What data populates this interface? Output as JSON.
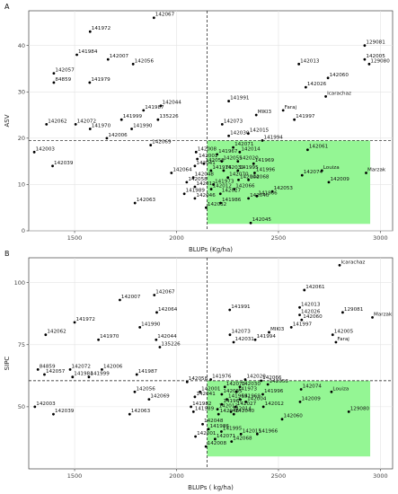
{
  "chart_data": [
    {
      "panel": "A",
      "type": "scatter",
      "xlabel": "BLUPs (Kg/ha)",
      "ylabel": "ASV",
      "xlim": [
        1275,
        3060
      ],
      "ylim": [
        0,
        47.5
      ],
      "xticks": [
        1500,
        2000,
        2500,
        3000
      ],
      "yticks": [
        0,
        10,
        20,
        30,
        40
      ],
      "vline": 2150,
      "hline": 19.5,
      "highlight": {
        "x": [
          2150,
          2950
        ],
        "y": [
          1.5,
          19.5
        ],
        "color": "#8ef58e"
      },
      "grid": true,
      "points": [
        {
          "x": 1889,
          "y": 46,
          "label": "142067"
        },
        {
          "x": 1576,
          "y": 43,
          "label": "141972"
        },
        {
          "x": 1511,
          "y": 38,
          "label": "141984"
        },
        {
          "x": 1664,
          "y": 37,
          "label": "142007"
        },
        {
          "x": 1787,
          "y": 36,
          "label": "142056"
        },
        {
          "x": 2923,
          "y": 40,
          "label": "129081"
        },
        {
          "x": 2923,
          "y": 37,
          "label": "142005"
        },
        {
          "x": 2600,
          "y": 36,
          "label": "142013"
        },
        {
          "x": 2945,
          "y": 36,
          "label": "129080"
        },
        {
          "x": 2743,
          "y": 33,
          "label": "142060"
        },
        {
          "x": 1398,
          "y": 34,
          "label": "142057"
        },
        {
          "x": 1398,
          "y": 32,
          "label": "84859"
        },
        {
          "x": 1574,
          "y": 32,
          "label": "141979"
        },
        {
          "x": 2634,
          "y": 31,
          "label": "142026"
        },
        {
          "x": 2732,
          "y": 29,
          "label": "Icarachaz"
        },
        {
          "x": 2256,
          "y": 28,
          "label": "141991"
        },
        {
          "x": 1923,
          "y": 27,
          "label": "142044"
        },
        {
          "x": 1838,
          "y": 26,
          "label": "141987"
        },
        {
          "x": 1730,
          "y": 24,
          "label": "141999"
        },
        {
          "x": 1909,
          "y": 24,
          "label": "135226"
        },
        {
          "x": 1362,
          "y": 23,
          "label": "142062"
        },
        {
          "x": 1505,
          "y": 23,
          "label": "142072"
        },
        {
          "x": 1576,
          "y": 22,
          "label": "141970"
        },
        {
          "x": 1780,
          "y": 22,
          "label": "141990"
        },
        {
          "x": 2578,
          "y": 24,
          "label": "141997"
        },
        {
          "x": 2391,
          "y": 25,
          "label": "MIKI3"
        },
        {
          "x": 2523,
          "y": 26,
          "label": "Faraj"
        },
        {
          "x": 2224,
          "y": 23,
          "label": "142073"
        },
        {
          "x": 2352,
          "y": 21,
          "label": "142015"
        },
        {
          "x": 2256,
          "y": 20.5,
          "label": "142030"
        },
        {
          "x": 1658,
          "y": 20,
          "label": "142006"
        },
        {
          "x": 1873,
          "y": 18.5,
          "label": "142069"
        },
        {
          "x": 2096,
          "y": 17,
          "label": "142008"
        },
        {
          "x": 2102,
          "y": 15.5,
          "label": "142001"
        },
        {
          "x": 2134,
          "y": 14.5,
          "label": "142058"
        },
        {
          "x": 2090,
          "y": 14,
          "label": "142041"
        },
        {
          "x": 1975,
          "y": 12.5,
          "label": "142064"
        },
        {
          "x": 2082,
          "y": 11.5,
          "label": "142048"
        },
        {
          "x": 1302,
          "y": 17,
          "label": "142003"
        },
        {
          "x": 1392,
          "y": 14,
          "label": "142039"
        },
        {
          "x": 2169,
          "y": 13,
          "label": "141976"
        },
        {
          "x": 2050,
          "y": 10.5,
          "label": "142058"
        },
        {
          "x": 2090,
          "y": 9.5,
          "label": "142012"
        },
        {
          "x": 2038,
          "y": 8,
          "label": "141989"
        },
        {
          "x": 2090,
          "y": 7,
          "label": "142046"
        },
        {
          "x": 1796,
          "y": 6,
          "label": "142063"
        },
        {
          "x": 2145,
          "y": 5,
          "label": "142032"
        },
        {
          "x": 2364,
          "y": 1.7,
          "label": "142045"
        },
        {
          "x": 2199,
          "y": 16.5,
          "label": "141967"
        },
        {
          "x": 2278,
          "y": 18,
          "label": "142071"
        },
        {
          "x": 2310,
          "y": 17,
          "label": "142014"
        },
        {
          "x": 2421,
          "y": 19.5,
          "label": "141994"
        },
        {
          "x": 2643,
          "y": 17.5,
          "label": "142061"
        },
        {
          "x": 2222,
          "y": 15,
          "label": "142055"
        },
        {
          "x": 2301,
          "y": 15,
          "label": "142020"
        },
        {
          "x": 2378,
          "y": 14.5,
          "label": "141969"
        },
        {
          "x": 2231,
          "y": 13,
          "label": "142031"
        },
        {
          "x": 2301,
          "y": 13,
          "label": "141995"
        },
        {
          "x": 2383,
          "y": 12.5,
          "label": "141996"
        },
        {
          "x": 2252,
          "y": 11.5,
          "label": "142070"
        },
        {
          "x": 2304,
          "y": 11,
          "label": "142004"
        },
        {
          "x": 2353,
          "y": 11,
          "label": "142068"
        },
        {
          "x": 2181,
          "y": 10,
          "label": "141973"
        },
        {
          "x": 2170,
          "y": 9,
          "label": "142012"
        },
        {
          "x": 2283,
          "y": 9,
          "label": "142066"
        },
        {
          "x": 2215,
          "y": 8,
          "label": "142027"
        },
        {
          "x": 2470,
          "y": 8.5,
          "label": "142053"
        },
        {
          "x": 2216,
          "y": 6,
          "label": "141986"
        },
        {
          "x": 2353,
          "y": 7,
          "label": "142040"
        },
        {
          "x": 2394,
          "y": 7.5,
          "label": "141966"
        },
        {
          "x": 2713,
          "y": 13,
          "label": "Louiza"
        },
        {
          "x": 2616,
          "y": 12,
          "label": "142074"
        },
        {
          "x": 2930,
          "y": 12.5,
          "label": "Marzak"
        },
        {
          "x": 2747,
          "y": 10.5,
          "label": "142009"
        }
      ]
    },
    {
      "panel": "B",
      "type": "scatter",
      "xlabel": "BLUPs ( kg/ha)",
      "ylabel": "SIPC",
      "xlim": [
        1275,
        3060
      ],
      "ylim": [
        25,
        110
      ],
      "xticks": [
        1500,
        2000,
        2500,
        3000
      ],
      "yticks": [
        50,
        75,
        100
      ],
      "vline": 2150,
      "hline": 60.5,
      "highlight": {
        "x": [
          2150,
          2950
        ],
        "y": [
          30,
          60.5
        ],
        "color": "#8ef58e"
      },
      "grid": true,
      "points": [
        {
          "x": 2800,
          "y": 107,
          "label": "Icarachaz"
        },
        {
          "x": 2627,
          "y": 97,
          "label": "142061"
        },
        {
          "x": 1891,
          "y": 95,
          "label": "142067"
        },
        {
          "x": 1722,
          "y": 93,
          "label": "142007"
        },
        {
          "x": 2604,
          "y": 90,
          "label": "142013"
        },
        {
          "x": 2261,
          "y": 89,
          "label": "141991"
        },
        {
          "x": 1903,
          "y": 88,
          "label": "142064"
        },
        {
          "x": 2604,
          "y": 87,
          "label": "142026"
        },
        {
          "x": 2961,
          "y": 86,
          "label": "Marzak"
        },
        {
          "x": 2614,
          "y": 85,
          "label": "142060"
        },
        {
          "x": 2815,
          "y": 88,
          "label": "129081"
        },
        {
          "x": 1500,
          "y": 84,
          "label": "141972"
        },
        {
          "x": 1820,
          "y": 82,
          "label": "141990"
        },
        {
          "x": 1358,
          "y": 79,
          "label": "142062"
        },
        {
          "x": 2563,
          "y": 82,
          "label": "141997"
        },
        {
          "x": 2454,
          "y": 80,
          "label": "MIKI3"
        },
        {
          "x": 2262,
          "y": 79,
          "label": "142073"
        },
        {
          "x": 2766,
          "y": 79,
          "label": "142005"
        },
        {
          "x": 2782,
          "y": 76,
          "label": "Faraj"
        },
        {
          "x": 1617,
          "y": 77,
          "label": "141970"
        },
        {
          "x": 1900,
          "y": 77,
          "label": "142044"
        },
        {
          "x": 2386,
          "y": 77,
          "label": "141994"
        },
        {
          "x": 2280,
          "y": 76,
          "label": "142031"
        },
        {
          "x": 1918,
          "y": 74,
          "label": "135226"
        },
        {
          "x": 1320,
          "y": 65,
          "label": "84859"
        },
        {
          "x": 1478,
          "y": 65,
          "label": "142072"
        },
        {
          "x": 1634,
          "y": 65,
          "label": "142006"
        },
        {
          "x": 1352,
          "y": 63,
          "label": "142057"
        },
        {
          "x": 1490,
          "y": 62,
          "label": "141984"
        },
        {
          "x": 1570,
          "y": 62,
          "label": "141999"
        },
        {
          "x": 1805,
          "y": 63,
          "label": "141987"
        },
        {
          "x": 1795,
          "y": 56,
          "label": "142056"
        },
        {
          "x": 1865,
          "y": 53,
          "label": "142069"
        },
        {
          "x": 2090,
          "y": 54,
          "label": "142041"
        },
        {
          "x": 2115,
          "y": 56,
          "label": "142001"
        },
        {
          "x": 1305,
          "y": 50,
          "label": "142003"
        },
        {
          "x": 1396,
          "y": 47,
          "label": "142039"
        },
        {
          "x": 1770,
          "y": 47,
          "label": "142063"
        },
        {
          "x": 2071,
          "y": 50,
          "label": "141982"
        },
        {
          "x": 2083,
          "y": 48,
          "label": "141989"
        },
        {
          "x": 2128,
          "y": 43,
          "label": "142048"
        },
        {
          "x": 2093,
          "y": 38,
          "label": "142001"
        },
        {
          "x": 2144,
          "y": 34,
          "label": "142008"
        },
        {
          "x": 2168,
          "y": 61,
          "label": "141976"
        },
        {
          "x": 2052,
          "y": 60,
          "label": "142058"
        },
        {
          "x": 2337,
          "y": 61,
          "label": "142020"
        },
        {
          "x": 2415,
          "y": 60.5,
          "label": "142066"
        },
        {
          "x": 2448,
          "y": 59,
          "label": "142053"
        },
        {
          "x": 2237,
          "y": 58,
          "label": "142070"
        },
        {
          "x": 2311,
          "y": 58,
          "label": "142030"
        },
        {
          "x": 2294,
          "y": 56,
          "label": "141973"
        },
        {
          "x": 2423,
          "y": 55,
          "label": "141996"
        },
        {
          "x": 2222,
          "y": 55,
          "label": "142055"
        },
        {
          "x": 2247,
          "y": 53,
          "label": "141969"
        },
        {
          "x": 2311,
          "y": 53,
          "label": "141969"
        },
        {
          "x": 2340,
          "y": 52,
          "label": "142004"
        },
        {
          "x": 2222,
          "y": 51,
          "label": "141967"
        },
        {
          "x": 2290,
          "y": 50,
          "label": "142027"
        },
        {
          "x": 2201,
          "y": 49,
          "label": "142012"
        },
        {
          "x": 2267,
          "y": 48,
          "label": "142014"
        },
        {
          "x": 2206,
          "y": 47,
          "label": "142046"
        },
        {
          "x": 2281,
          "y": 47,
          "label": "142040"
        },
        {
          "x": 2426,
          "y": 50,
          "label": "142012"
        },
        {
          "x": 2611,
          "y": 57,
          "label": "142074"
        },
        {
          "x": 2760,
          "y": 56,
          "label": "Louiza"
        },
        {
          "x": 2606,
          "y": 52,
          "label": "142009"
        },
        {
          "x": 2518,
          "y": 45,
          "label": "142060"
        },
        {
          "x": 2845,
          "y": 48,
          "label": "129080"
        },
        {
          "x": 2157,
          "y": 41,
          "label": "141986"
        },
        {
          "x": 2220,
          "y": 40,
          "label": "141995"
        },
        {
          "x": 2316,
          "y": 39,
          "label": "142015"
        },
        {
          "x": 2396,
          "y": 39,
          "label": "141966"
        },
        {
          "x": 2189,
          "y": 37,
          "label": "142071"
        },
        {
          "x": 2270,
          "y": 36,
          "label": "142068"
        }
      ]
    }
  ]
}
